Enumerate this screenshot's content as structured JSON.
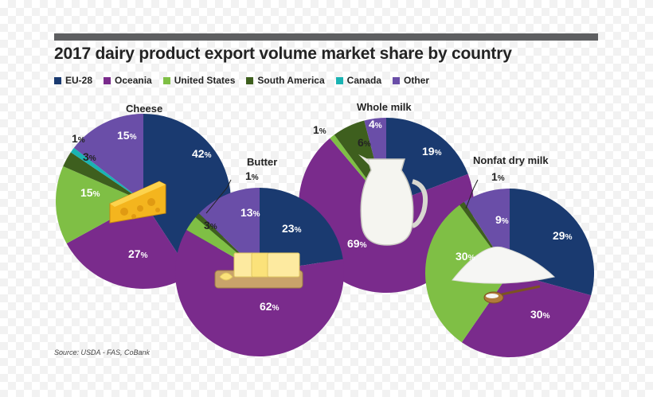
{
  "title": "2017 dairy product export volume market share by country",
  "source": "Source: USDA - FAS, CoBank",
  "colors": {
    "EU-28": "#1a3a70",
    "Oceania": "#7a2b8c",
    "United States": "#7fbf45",
    "South America": "#3e5f1e",
    "Canada": "#1ab3b3",
    "Other": "#6a4ea8"
  },
  "legend": [
    {
      "name": "EU-28",
      "color": "#1a3a70"
    },
    {
      "name": "Oceania",
      "color": "#7a2b8c"
    },
    {
      "name": "United States",
      "color": "#7fbf45"
    },
    {
      "name": "South America",
      "color": "#3e5f1e"
    },
    {
      "name": "Canada",
      "color": "#1ab3b3"
    },
    {
      "name": "Other",
      "color": "#6a4ea8"
    }
  ],
  "chart_data": [
    {
      "type": "pie",
      "title": "Cheese",
      "icon": "cheese-icon",
      "slices": [
        {
          "name": "EU-28",
          "value": 42,
          "label": "42%"
        },
        {
          "name": "Oceania",
          "value": 27,
          "label": "27%"
        },
        {
          "name": "United States",
          "value": 15,
          "label": "15%"
        },
        {
          "name": "South America",
          "value": 3,
          "label": "3%"
        },
        {
          "name": "Canada",
          "value": 1,
          "label": "1%"
        },
        {
          "name": "Other",
          "value": 15,
          "label": "15%"
        }
      ]
    },
    {
      "type": "pie",
      "title": "Butter",
      "icon": "butter-icon",
      "slices": [
        {
          "name": "EU-28",
          "value": 23,
          "label": "23%"
        },
        {
          "name": "Oceania",
          "value": 62,
          "label": "62%"
        },
        {
          "name": "United States",
          "value": 3,
          "label": "3%"
        },
        {
          "name": "South America",
          "value": 1,
          "label": "1%"
        },
        {
          "name": "Other",
          "value": 13,
          "label": "13%"
        }
      ]
    },
    {
      "type": "pie",
      "title": "Whole milk",
      "icon": "milk-jug-icon",
      "slices": [
        {
          "name": "EU-28",
          "value": 19,
          "label": "19%"
        },
        {
          "name": "Oceania",
          "value": 69,
          "label": "69%"
        },
        {
          "name": "United States",
          "value": 1,
          "label": "1%"
        },
        {
          "name": "South America",
          "value": 6,
          "label": "6%"
        },
        {
          "name": "Other",
          "value": 4,
          "label": "4%"
        }
      ]
    },
    {
      "type": "pie",
      "title": "Nonfat dry milk",
      "icon": "milk-powder-icon",
      "slices": [
        {
          "name": "EU-28",
          "value": 29,
          "label": "29%"
        },
        {
          "name": "Oceania",
          "value": 30,
          "label": "30%"
        },
        {
          "name": "United States",
          "value": 30,
          "label": "30%"
        },
        {
          "name": "South America",
          "value": 1,
          "label": "1%"
        },
        {
          "name": "Other",
          "value": 9,
          "label": "9%"
        }
      ]
    }
  ]
}
